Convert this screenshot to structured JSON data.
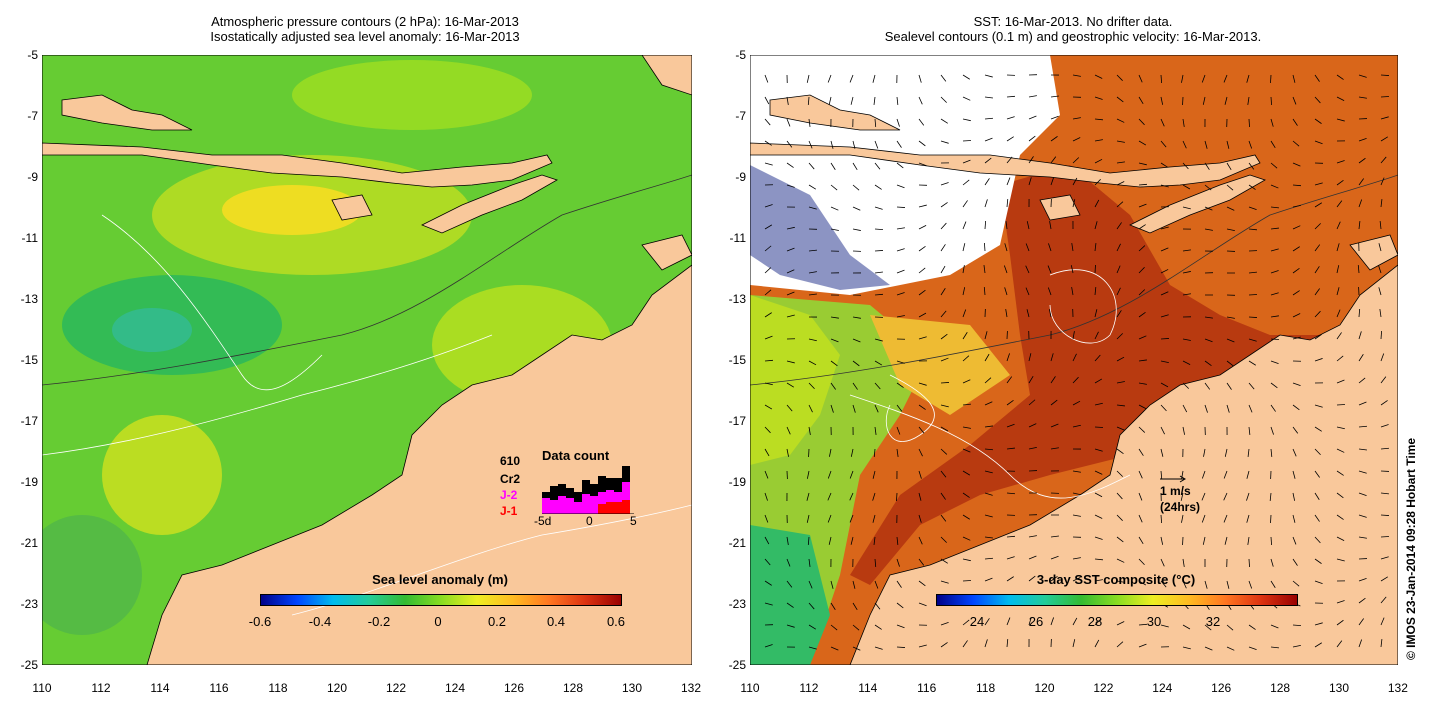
{
  "left": {
    "title_line1": "Atmospheric pressure contours (2 hPa): 16-Mar-2013",
    "title_line2": "Isostatically adjusted sea level anomaly: 16-Mar-2013",
    "colorbar_label": "Sea level anomaly (m)",
    "colorbar_ticks": [
      "-0.6",
      "-0.4",
      "-0.2",
      "0",
      "0.2",
      "0.4",
      "0.6"
    ],
    "data_count": {
      "title": "Data count",
      "count": "610",
      "series": [
        "Cr2",
        "J-2",
        "J-1"
      ],
      "series_colors": [
        "#000000",
        "#ff00ff",
        "#ff0000"
      ],
      "axis_ticks": [
        "-5d",
        "0",
        "5"
      ]
    }
  },
  "right": {
    "title_line1": "SST: 16-Mar-2013. No drifter data.",
    "title_line2": "Sealevel contours (0.1 m) and geostrophic velocity: 16-Mar-2013.",
    "colorbar_label": "3-day SST composite (°C)",
    "colorbar_ticks": [
      "24",
      "26",
      "28",
      "30",
      "32"
    ],
    "vector_scale_label": "1 m/s",
    "vector_scale_sub": "(24hrs)"
  },
  "axes": {
    "y_ticks": [
      "-5",
      "-7",
      "-9",
      "-11",
      "-13",
      "-15",
      "-17",
      "-19",
      "-21",
      "-23",
      "-25"
    ],
    "x_ticks": [
      "110",
      "112",
      "114",
      "116",
      "118",
      "120",
      "122",
      "124",
      "126",
      "128",
      "130",
      "132"
    ]
  },
  "credit": "© IMOS 23-Jan-2014 09:28 Hobart Time",
  "colors": {
    "land": "#f9c89b",
    "sla_sea": "#66cc33",
    "sst_sea": "#d9661a"
  }
}
